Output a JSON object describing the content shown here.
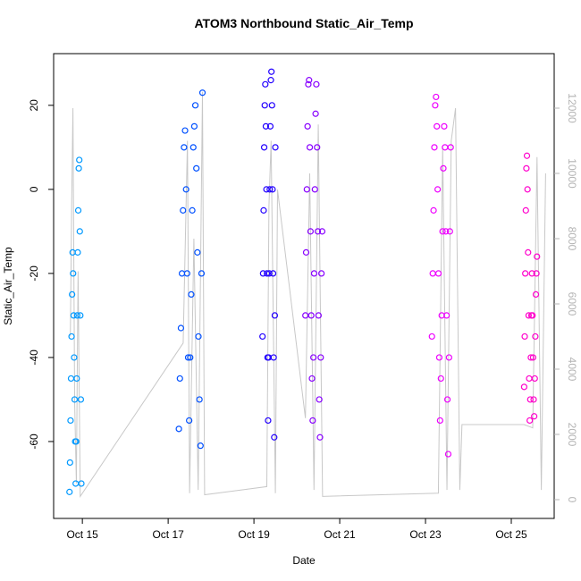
{
  "chart_data": {
    "type": "scatter",
    "title": "ATOM3 Northbound Static_Air_Temp",
    "x_label": "Date",
    "y_label": "Static_Air_Temp",
    "xlim": [
      14.33,
      26.0
    ],
    "ylim": [
      -78.3,
      32.3
    ],
    "y2lim": [
      -575,
      13671
    ],
    "xticks": [
      {
        "value": 15,
        "label": "Oct 15"
      },
      {
        "value": 17,
        "label": "Oct 17"
      },
      {
        "value": 19,
        "label": "Oct 19"
      },
      {
        "value": 21,
        "label": "Oct 21"
      },
      {
        "value": 23,
        "label": "Oct 23"
      },
      {
        "value": 25,
        "label": "Oct 25"
      }
    ],
    "yticks": [
      -60,
      -40,
      -20,
      0,
      20
    ],
    "y2ticks": [
      0,
      2000,
      4000,
      6000,
      8000,
      10000,
      12000
    ],
    "series": [
      {
        "type": "line",
        "axis": "y2",
        "color": "#c8c8c8",
        "x": [
          14.72,
          14.75,
          14.78,
          14.82,
          14.86,
          14.9,
          14.95,
          17.35,
          17.45,
          17.5,
          17.6,
          17.7,
          17.8,
          17.85,
          19.3,
          19.35,
          19.4,
          19.5,
          19.55,
          20.2,
          20.3,
          20.4,
          20.5,
          20.6,
          23.3,
          23.4,
          23.5,
          23.6,
          23.7,
          23.8,
          23.85,
          25.3,
          25.5,
          25.6,
          25.7,
          25.8
        ],
        "values": [
          5000,
          9000,
          12000,
          3000,
          500,
          7000,
          100,
          4800,
          11000,
          200,
          8000,
          300,
          12500,
          150,
          400,
          9000,
          11000,
          200,
          9500,
          2500,
          10000,
          300,
          11500,
          100,
          200,
          10800,
          300,
          11000,
          12000,
          300,
          2300,
          2300,
          2200,
          10500,
          300,
          10000
        ]
      },
      {
        "type": "scatter",
        "color": "#0099ff",
        "x": [
          14.7,
          14.712,
          14.724,
          14.736,
          14.748,
          14.76,
          14.772,
          14.784,
          14.796,
          14.808,
          14.82,
          14.832,
          14.844,
          14.856,
          14.868,
          14.88,
          14.892,
          14.904,
          14.916,
          14.928,
          14.94,
          14.952,
          14.964,
          14.976
        ],
        "values": [
          -72,
          -65,
          -55,
          -45,
          -35,
          -25,
          -15,
          -20,
          -30,
          -40,
          -50,
          -60,
          -70,
          -60,
          -45,
          -30,
          -15,
          -5,
          5,
          7,
          -10,
          -30,
          -50,
          -70
        ]
      },
      {
        "type": "scatter",
        "color": "#0050ff",
        "x": [
          17.25,
          17.274,
          17.298,
          17.322,
          17.346,
          17.37,
          17.394,
          17.418,
          17.442,
          17.466,
          17.49,
          17.514,
          17.538,
          17.562,
          17.586,
          17.61,
          17.634,
          17.658,
          17.682,
          17.706,
          17.73,
          17.754,
          17.778,
          17.8
        ],
        "values": [
          -57,
          -45,
          -33,
          -20,
          -5,
          10,
          14,
          0,
          -20,
          -40,
          -55,
          -40,
          -25,
          -5,
          10,
          15,
          20,
          5,
          -15,
          -35,
          -50,
          -61,
          -20,
          23
        ]
      },
      {
        "type": "scatter",
        "color": "#2200ff",
        "x": [
          19.2,
          19.213,
          19.226,
          19.239,
          19.252,
          19.265,
          19.278,
          19.291,
          19.304,
          19.317,
          19.33,
          19.343,
          19.356,
          19.369,
          19.382,
          19.395,
          19.408,
          19.421,
          19.434,
          19.447,
          19.46,
          19.473,
          19.486,
          19.499
        ],
        "values": [
          -35,
          -20,
          -5,
          10,
          20,
          25,
          15,
          0,
          -20,
          -40,
          -55,
          -40,
          -20,
          0,
          15,
          26,
          28,
          20,
          0,
          -20,
          -40,
          -59,
          -30,
          10
        ]
      },
      {
        "type": "scatter",
        "color": "#8800ff",
        "x": [
          20.2,
          20.217,
          20.234,
          20.251,
          20.268,
          20.285,
          20.302,
          20.319,
          20.336,
          20.353,
          20.37,
          20.387,
          20.404,
          20.421,
          20.438,
          20.455,
          20.472,
          20.489,
          20.506,
          20.523,
          20.54,
          20.557,
          20.574,
          20.591
        ],
        "values": [
          -30,
          -15,
          0,
          15,
          25,
          26,
          10,
          -10,
          -30,
          -45,
          -55,
          -40,
          -20,
          0,
          18,
          25,
          10,
          -10,
          -30,
          -50,
          -59,
          -40,
          -20,
          -10
        ]
      },
      {
        "type": "scatter",
        "color": "#ee00ff",
        "x": [
          23.15,
          23.169,
          23.188,
          23.207,
          23.226,
          23.245,
          23.264,
          23.283,
          23.302,
          23.321,
          23.34,
          23.359,
          23.378,
          23.397,
          23.416,
          23.435,
          23.454,
          23.473,
          23.492,
          23.511,
          23.53,
          23.549,
          23.568,
          23.587
        ],
        "values": [
          -35,
          -20,
          -5,
          10,
          20,
          22,
          15,
          0,
          -20,
          -40,
          -55,
          -45,
          -30,
          -10,
          5,
          15,
          10,
          -10,
          -30,
          -50,
          -63,
          -40,
          -10,
          10
        ]
      },
      {
        "type": "scatter",
        "color": "#ff00cc",
        "x": [
          25.3,
          25.313,
          25.326,
          25.339,
          25.352,
          25.365,
          25.378,
          25.391,
          25.404,
          25.417,
          25.43,
          25.443,
          25.456,
          25.469,
          25.482,
          25.495,
          25.508,
          25.521,
          25.534,
          25.547,
          25.56,
          25.573,
          25.586,
          25.599
        ],
        "values": [
          -47,
          -35,
          -20,
          -5,
          5,
          8,
          0,
          -15,
          -30,
          -45,
          -55,
          -50,
          -40,
          -30,
          -20,
          -30,
          -40,
          -50,
          -54,
          -45,
          -35,
          -25,
          -20,
          -16
        ]
      }
    ]
  }
}
